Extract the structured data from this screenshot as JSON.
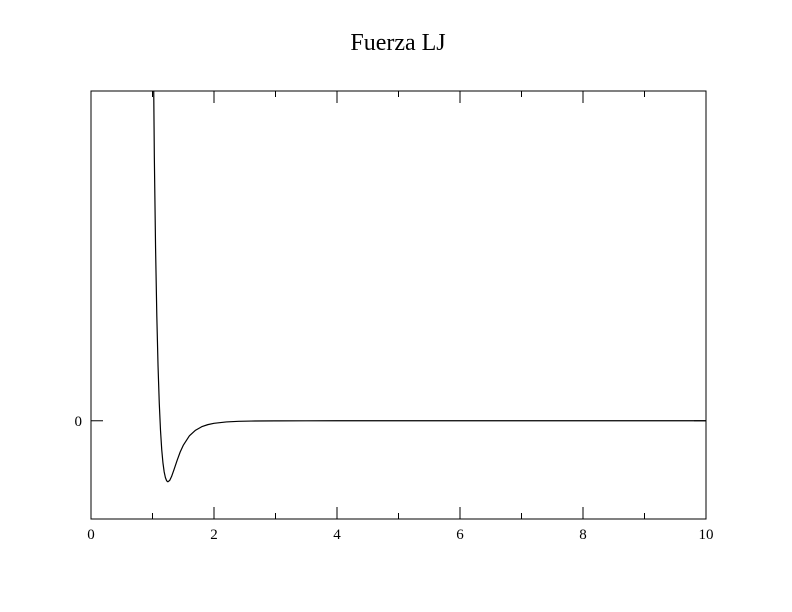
{
  "chart_data": {
    "type": "line",
    "title": "Fuerza LJ",
    "xlabel": "",
    "ylabel": "",
    "xlim": [
      0,
      10
    ],
    "ylim": [
      -2.8,
      9.4
    ],
    "x_major_ticks": [
      0,
      2,
      4,
      6,
      8,
      10
    ],
    "x_minor_ticks": [
      1,
      3,
      5,
      7,
      9
    ],
    "x_tick_labels": [
      "0",
      "2",
      "4",
      "6",
      "8",
      "10"
    ],
    "y_ticks": [
      0
    ],
    "y_tick_labels": [
      "0"
    ],
    "grid": false,
    "legend": "none",
    "line_color": "#000000",
    "series": [
      {
        "x": [
          1.02,
          1.03,
          1.05,
          1.07,
          1.09,
          1.11,
          1.13,
          1.15,
          1.17,
          1.19,
          1.21,
          1.23,
          1.25,
          1.28,
          1.31,
          1.35,
          1.4,
          1.45,
          1.5,
          1.6,
          1.7,
          1.8,
          1.9,
          2.0,
          2.2,
          2.4,
          2.6,
          3.0,
          3.5,
          4.0,
          5.0,
          6.0,
          7.0,
          8.0,
          9.0,
          10.0
        ],
        "y": [
          9.4,
          7.51,
          4.92,
          2.99,
          1.56,
          0.5,
          -0.27,
          -0.82,
          -1.2,
          -1.46,
          -1.62,
          -1.71,
          -1.74,
          -1.7,
          -1.59,
          -1.39,
          -1.13,
          -0.89,
          -0.7,
          -0.43,
          -0.27,
          -0.17,
          -0.11,
          -0.073,
          -0.033,
          -0.016,
          -0.008,
          -0.0025,
          -0.0008,
          -0.0003,
          -7e-05,
          -2e-05,
          0,
          0,
          0,
          0
        ]
      }
    ]
  }
}
